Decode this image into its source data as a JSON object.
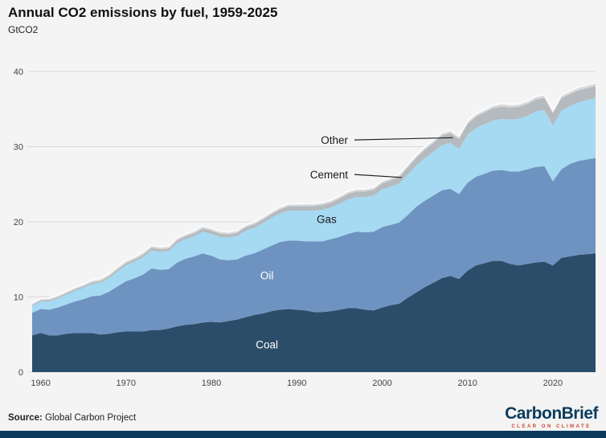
{
  "page": {
    "background": "#f4f4f4",
    "accent_color": "#0b3c5d"
  },
  "header": {
    "title": "Annual CO2 emissions by fuel, 1959-2025",
    "subtitle": "GtCO2"
  },
  "footer": {
    "source_label": "Source:",
    "source_text": " Global Carbon Project",
    "logo_main": "CarbonBrief",
    "logo_tagline": "CLEAR ON CLIMATE",
    "logo_color": "#0b3c5d",
    "tagline_color": "#d6402f"
  },
  "chart_data": {
    "type": "area",
    "stacked": true,
    "title": "Annual CO2 emissions by fuel, 1959-2025",
    "xlabel": "",
    "ylabel": "GtCO2",
    "ylim": [
      0,
      40
    ],
    "grid": "horizontal",
    "legend": "inline-labels",
    "x": [
      1959,
      1960,
      1961,
      1962,
      1963,
      1964,
      1965,
      1966,
      1967,
      1968,
      1969,
      1970,
      1971,
      1972,
      1973,
      1974,
      1975,
      1976,
      1977,
      1978,
      1979,
      1980,
      1981,
      1982,
      1983,
      1984,
      1985,
      1986,
      1987,
      1988,
      1989,
      1990,
      1991,
      1992,
      1993,
      1994,
      1995,
      1996,
      1997,
      1998,
      1999,
      2000,
      2001,
      2002,
      2003,
      2004,
      2005,
      2006,
      2007,
      2008,
      2009,
      2010,
      2011,
      2012,
      2013,
      2014,
      2015,
      2016,
      2017,
      2018,
      2019,
      2020,
      2021,
      2022,
      2023,
      2024,
      2025
    ],
    "x_ticks": [
      1960,
      1970,
      1980,
      1990,
      2000,
      2010,
      2020
    ],
    "y_ticks": [
      0,
      10,
      20,
      30,
      40
    ],
    "series": [
      {
        "name": "Coal",
        "color": "#2c4d6a",
        "values": [
          4.9,
          5.2,
          4.9,
          4.9,
          5.1,
          5.2,
          5.2,
          5.2,
          5.0,
          5.1,
          5.3,
          5.4,
          5.4,
          5.4,
          5.6,
          5.6,
          5.8,
          6.1,
          6.3,
          6.4,
          6.6,
          6.7,
          6.6,
          6.8,
          7.0,
          7.3,
          7.6,
          7.8,
          8.1,
          8.3,
          8.4,
          8.3,
          8.2,
          8.0,
          8.0,
          8.1,
          8.3,
          8.5,
          8.5,
          8.3,
          8.2,
          8.6,
          8.9,
          9.1,
          9.9,
          10.6,
          11.3,
          11.9,
          12.5,
          12.8,
          12.4,
          13.5,
          14.2,
          14.5,
          14.8,
          14.8,
          14.4,
          14.2,
          14.4,
          14.6,
          14.7,
          14.2,
          15.2,
          15.4,
          15.6,
          15.7,
          15.8
        ]
      },
      {
        "name": "Oil",
        "color": "#6f93c0",
        "values": [
          3.0,
          3.2,
          3.4,
          3.7,
          3.9,
          4.2,
          4.5,
          4.9,
          5.2,
          5.6,
          6.1,
          6.7,
          7.1,
          7.6,
          8.2,
          8.0,
          7.9,
          8.5,
          8.8,
          9.0,
          9.2,
          8.8,
          8.4,
          8.1,
          8.0,
          8.2,
          8.2,
          8.5,
          8.7,
          9.0,
          9.1,
          9.2,
          9.2,
          9.4,
          9.4,
          9.6,
          9.7,
          9.9,
          10.2,
          10.3,
          10.5,
          10.7,
          10.7,
          10.8,
          11.0,
          11.4,
          11.5,
          11.6,
          11.7,
          11.6,
          11.3,
          11.7,
          11.8,
          11.9,
          12.0,
          12.1,
          12.3,
          12.5,
          12.6,
          12.7,
          12.7,
          11.2,
          11.8,
          12.3,
          12.5,
          12.6,
          12.7
        ]
      },
      {
        "name": "Gas",
        "color": "#a6d9f2",
        "values": [
          0.9,
          1.0,
          1.1,
          1.2,
          1.3,
          1.4,
          1.5,
          1.6,
          1.7,
          1.8,
          2.0,
          2.1,
          2.2,
          2.3,
          2.4,
          2.4,
          2.4,
          2.6,
          2.6,
          2.7,
          2.9,
          2.9,
          3.0,
          3.0,
          3.1,
          3.3,
          3.4,
          3.5,
          3.7,
          3.8,
          4.0,
          4.0,
          4.1,
          4.1,
          4.2,
          4.2,
          4.4,
          4.6,
          4.6,
          4.7,
          4.8,
          5.0,
          5.1,
          5.2,
          5.4,
          5.5,
          5.7,
          5.8,
          6.0,
          6.1,
          6.0,
          6.4,
          6.5,
          6.6,
          6.7,
          6.8,
          6.9,
          7.0,
          7.1,
          7.4,
          7.5,
          7.4,
          7.8,
          7.7,
          7.8,
          7.9,
          8.0
        ]
      },
      {
        "name": "Cement",
        "color": "#b5babe",
        "values": [
          0.15,
          0.16,
          0.17,
          0.18,
          0.19,
          0.21,
          0.22,
          0.23,
          0.23,
          0.25,
          0.27,
          0.29,
          0.3,
          0.32,
          0.33,
          0.33,
          0.34,
          0.35,
          0.37,
          0.39,
          0.41,
          0.42,
          0.42,
          0.43,
          0.44,
          0.46,
          0.47,
          0.49,
          0.51,
          0.54,
          0.55,
          0.57,
          0.58,
          0.61,
          0.64,
          0.66,
          0.7,
          0.72,
          0.74,
          0.74,
          0.76,
          0.8,
          0.83,
          0.87,
          0.94,
          1.02,
          1.1,
          1.19,
          1.27,
          1.31,
          1.33,
          1.42,
          1.51,
          1.56,
          1.63,
          1.64,
          1.62,
          1.6,
          1.58,
          1.57,
          1.6,
          1.63,
          1.67,
          1.6,
          1.6,
          1.59,
          1.58
        ]
      },
      {
        "name": "Other",
        "color": "#d7d9db",
        "values": [
          0.25,
          0.26,
          0.27,
          0.27,
          0.28,
          0.29,
          0.3,
          0.31,
          0.32,
          0.33,
          0.34,
          0.35,
          0.35,
          0.36,
          0.36,
          0.35,
          0.33,
          0.34,
          0.34,
          0.35,
          0.35,
          0.34,
          0.33,
          0.32,
          0.32,
          0.32,
          0.32,
          0.32,
          0.33,
          0.33,
          0.34,
          0.34,
          0.34,
          0.33,
          0.33,
          0.33,
          0.34,
          0.34,
          0.35,
          0.35,
          0.35,
          0.36,
          0.36,
          0.36,
          0.37,
          0.37,
          0.38,
          0.38,
          0.38,
          0.38,
          0.37,
          0.38,
          0.39,
          0.39,
          0.4,
          0.4,
          0.4,
          0.4,
          0.41,
          0.41,
          0.42,
          0.4,
          0.41,
          0.42,
          0.42,
          0.42,
          0.43
        ]
      }
    ],
    "annotations": [
      {
        "text": "Other",
        "x": 1996,
        "y": 30.9,
        "color": "#1a1a1a",
        "line_to": {
          "x": 2008.3,
          "y": 31.2
        }
      },
      {
        "text": "Cement",
        "x": 1996,
        "y": 26.3,
        "color": "#1a1a1a",
        "line_to": {
          "x": 2002.3,
          "y": 25.9
        }
      },
      {
        "text": "Gas",
        "x": 1993.5,
        "y": 20.4,
        "color": "#1a1a1a"
      },
      {
        "text": "Oil",
        "x": 1986.5,
        "y": 12.9,
        "color": "#ffffff"
      },
      {
        "text": "Coal",
        "x": 1986.5,
        "y": 3.7,
        "color": "#ffffff"
      }
    ]
  }
}
